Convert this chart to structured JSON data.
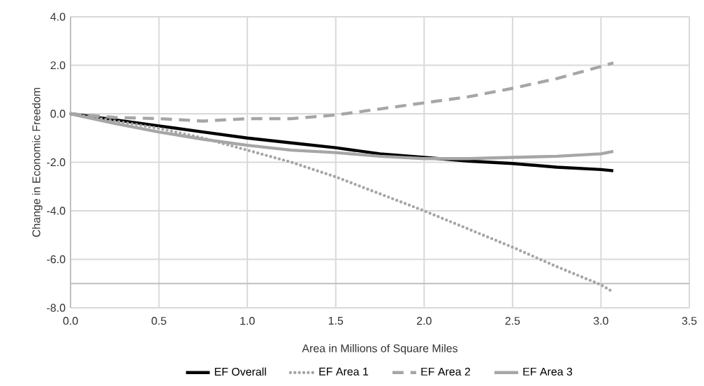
{
  "chart_data": {
    "type": "line",
    "xlabel": "Area in Millions of Square Miles",
    "ylabel": "Change in Economic Freedom",
    "x": [
      0,
      0.25,
      0.5,
      0.75,
      1.0,
      1.25,
      1.5,
      1.75,
      2.0,
      2.25,
      2.5,
      2.75,
      3.0,
      3.07
    ],
    "series": [
      {
        "name": "EF Overall",
        "color": "#000000",
        "line_style": "solid",
        "values": [
          0,
          -0.25,
          -0.5,
          -0.75,
          -1.0,
          -1.2,
          -1.4,
          -1.65,
          -1.8,
          -1.95,
          -2.05,
          -2.2,
          -2.3,
          -2.35
        ]
      },
      {
        "name": "EF Area 1",
        "color": "#a6a6a6",
        "line_style": "dotted",
        "values": [
          0,
          -0.3,
          -0.6,
          -1.0,
          -1.5,
          -2.0,
          -2.6,
          -3.3,
          -4.0,
          -4.75,
          -5.5,
          -6.3,
          -7.05,
          -7.35
        ]
      },
      {
        "name": "EF Area 2",
        "color": "#a6a6a6",
        "line_style": "dashed",
        "values": [
          0,
          -0.15,
          -0.2,
          -0.3,
          -0.2,
          -0.2,
          -0.05,
          0.2,
          0.45,
          0.7,
          1.05,
          1.45,
          1.95,
          2.1
        ]
      },
      {
        "name": "EF Area 3",
        "color": "#a6a6a6",
        "line_style": "solid",
        "values": [
          0,
          -0.4,
          -0.75,
          -1.05,
          -1.3,
          -1.5,
          -1.6,
          -1.75,
          -1.85,
          -1.85,
          -1.8,
          -1.75,
          -1.65,
          -1.55
        ]
      }
    ],
    "xlim": [
      0,
      3.5
    ],
    "ylim": [
      -8,
      4
    ],
    "xticks": [
      {
        "value": 0,
        "label": "0.0"
      },
      {
        "value": 0.5,
        "label": "0.5"
      },
      {
        "value": 1,
        "label": "1.0"
      },
      {
        "value": 1.5,
        "label": "1.5"
      },
      {
        "value": 2,
        "label": "2.0"
      },
      {
        "value": 2.5,
        "label": "2.5"
      },
      {
        "value": 3,
        "label": "3.0"
      },
      {
        "value": 3.5,
        "label": "3.5"
      }
    ],
    "yticks": [
      {
        "value": 4,
        "label": "4.0"
      },
      {
        "value": 2,
        "label": "2.0"
      },
      {
        "value": 0,
        "label": "0.0"
      },
      {
        "value": -2,
        "label": "-2.0"
      },
      {
        "value": -4,
        "label": "-4.0"
      },
      {
        "value": -6,
        "label": "-6.0"
      },
      {
        "value": -8,
        "label": "-8.0"
      }
    ],
    "ref_lines": [
      {
        "axis": "y",
        "value": -7,
        "color": "#bfbfbf"
      }
    ],
    "grid": true,
    "legend": "bottom",
    "marker": "none"
  }
}
